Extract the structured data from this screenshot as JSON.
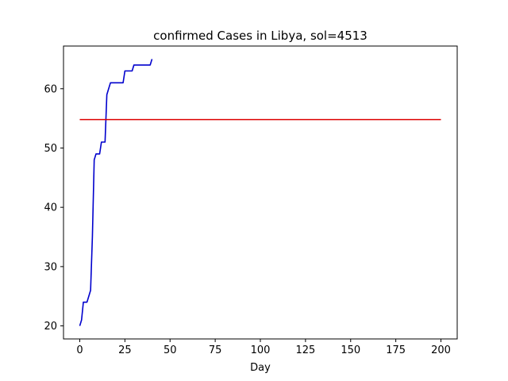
{
  "chart_data": {
    "type": "line",
    "title": "confirmed Cases in Libya, sol=4513",
    "xlabel": "Day",
    "ylabel": "",
    "xlim": [
      -9,
      209
    ],
    "ylim": [
      17.8,
      67.2
    ],
    "xticks": [
      0,
      25,
      50,
      75,
      100,
      125,
      150,
      175,
      200
    ],
    "yticks": [
      20,
      30,
      40,
      50,
      60
    ],
    "grid": false,
    "legend": "none",
    "series": [
      {
        "color": "#0000cd",
        "x": [
          0,
          1,
          2,
          3,
          4,
          5,
          6,
          7,
          8,
          9,
          10,
          11,
          12,
          13,
          14,
          15,
          16,
          17,
          18,
          19,
          20,
          21,
          22,
          23,
          24,
          25,
          26,
          27,
          28,
          29,
          30,
          31,
          32,
          33,
          34,
          35,
          36,
          37,
          38,
          39,
          40
        ],
        "y": [
          20,
          21,
          24,
          24,
          24,
          25,
          26,
          35,
          48,
          49,
          49,
          49,
          51,
          51,
          51,
          59,
          60,
          61,
          61,
          61,
          61,
          61,
          61,
          61,
          61,
          63,
          63,
          63,
          63,
          63,
          64,
          64,
          64,
          64,
          64,
          64,
          64,
          64,
          64,
          64,
          65
        ]
      },
      {
        "color": "#dd0000",
        "x": [
          0,
          200
        ],
        "y": [
          54.8,
          54.8
        ]
      }
    ]
  }
}
